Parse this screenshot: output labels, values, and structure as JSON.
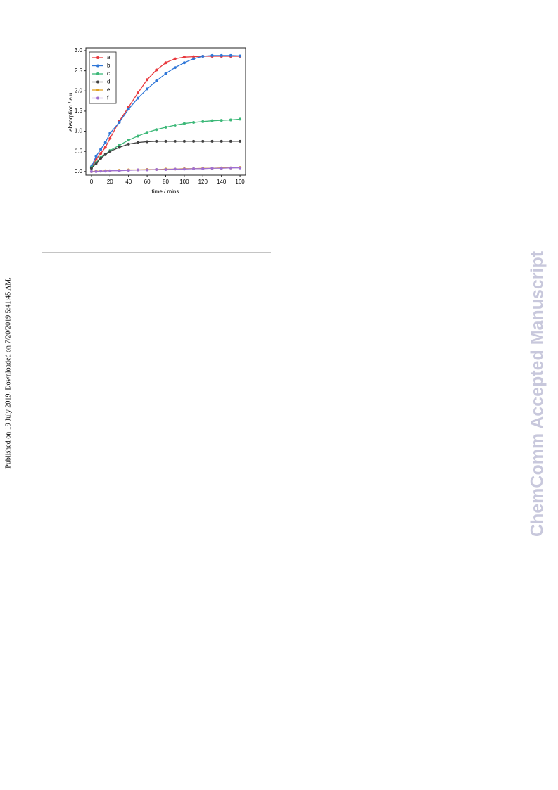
{
  "sidebar_left": "Published on 19 July 2019. Downloaded on 7/20/2019 5:41:45 AM.",
  "sidebar_right": "ChemComm Accepted Manuscript",
  "chart_data": {
    "type": "line",
    "x_label": "time / mins",
    "y_label": "absorption / a.u.",
    "x": [
      0,
      5,
      10,
      15,
      20,
      30,
      40,
      50,
      60,
      70,
      80,
      90,
      100,
      110,
      120,
      130,
      140,
      150,
      160
    ],
    "series": [
      {
        "name": "a",
        "color": "#e8383d",
        "values": [
          0.1,
          0.3,
          0.45,
          0.6,
          0.82,
          1.25,
          1.6,
          1.95,
          2.28,
          2.52,
          2.7,
          2.8,
          2.84,
          2.85,
          2.86,
          2.86,
          2.86,
          2.86,
          2.86
        ]
      },
      {
        "name": "b",
        "color": "#2f77d8",
        "values": [
          0.12,
          0.38,
          0.55,
          0.72,
          0.95,
          1.22,
          1.55,
          1.82,
          2.05,
          2.25,
          2.43,
          2.58,
          2.7,
          2.8,
          2.86,
          2.88,
          2.88,
          2.88,
          2.87
        ]
      },
      {
        "name": "c",
        "color": "#3cb878",
        "values": [
          0.1,
          0.22,
          0.35,
          0.43,
          0.52,
          0.65,
          0.78,
          0.88,
          0.97,
          1.04,
          1.1,
          1.15,
          1.19,
          1.22,
          1.24,
          1.26,
          1.27,
          1.28,
          1.3
        ]
      },
      {
        "name": "d",
        "color": "#404040",
        "values": [
          0.08,
          0.2,
          0.33,
          0.42,
          0.5,
          0.6,
          0.68,
          0.72,
          0.74,
          0.75,
          0.75,
          0.75,
          0.75,
          0.75,
          0.75,
          0.75,
          0.75,
          0.75,
          0.75
        ]
      },
      {
        "name": "e",
        "color": "#e0a020",
        "values": [
          0.0,
          0.01,
          0.01,
          0.02,
          0.02,
          0.03,
          0.04,
          0.04,
          0.05,
          0.05,
          0.06,
          0.06,
          0.07,
          0.07,
          0.08,
          0.08,
          0.09,
          0.09,
          0.1
        ]
      },
      {
        "name": "f",
        "color": "#a070d0",
        "values": [
          0.0,
          0.0,
          0.01,
          0.01,
          0.02,
          0.02,
          0.03,
          0.04,
          0.04,
          0.05,
          0.05,
          0.06,
          0.06,
          0.07,
          0.07,
          0.08,
          0.08,
          0.09,
          0.09
        ]
      }
    ],
    "xlim": [
      -6,
      166
    ],
    "ylim": [
      -0.09,
      3.07
    ],
    "xticks": [
      0,
      20,
      40,
      60,
      80,
      100,
      120,
      140,
      160
    ],
    "yticks": [
      {
        "value": 0,
        "label": "0.0"
      },
      0.5,
      {
        "value": 1,
        "label": "1.0"
      },
      1.5,
      {
        "value": 2,
        "label": "2.0"
      },
      2.5,
      {
        "value": 3,
        "label": "3.0"
      }
    ],
    "legend": "upper left"
  }
}
